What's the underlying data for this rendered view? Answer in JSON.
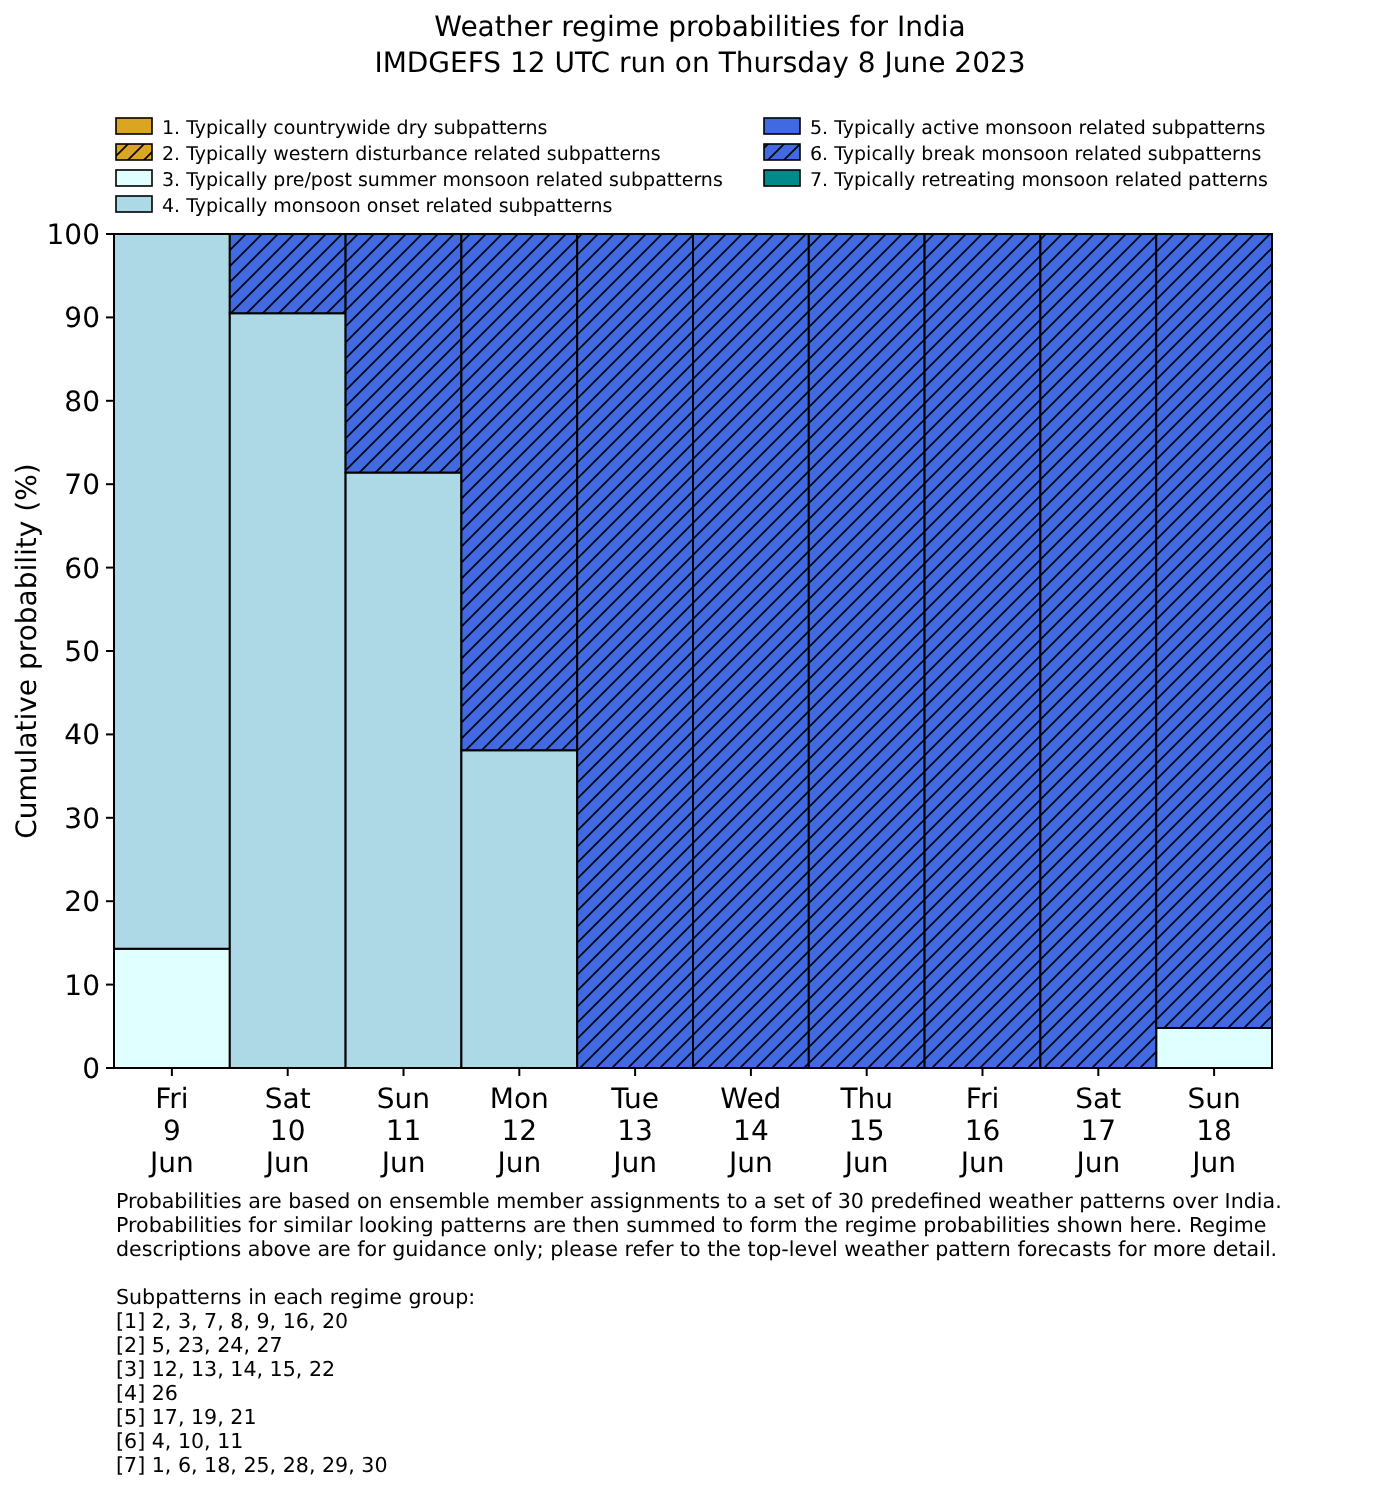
{
  "chart_data": {
    "type": "bar",
    "title": "Weather regime probabilities for India",
    "subtitle": "IMDGEFS 12 UTC run on Thursday 8 June 2023",
    "ylabel": "Cumulative probability (%)",
    "categories": [
      "Fri\n9\nJun",
      "Sat\n10\nJun",
      "Sun\n11\nJun",
      "Mon\n12\nJun",
      "Tue\n13\nJun",
      "Wed\n14\nJun",
      "Thu\n15\nJun",
      "Fri\n16\nJun",
      "Sat\n17\nJun",
      "Sun\n18\nJun"
    ],
    "stacked": true,
    "legend": "top",
    "ylim": [
      0,
      100
    ],
    "yticks": [
      0,
      10,
      20,
      30,
      40,
      50,
      60,
      70,
      80,
      90,
      100
    ],
    "series": [
      {
        "name": "1. Typically countrywide dry subpatterns",
        "color": "#daa520",
        "values": [
          0,
          0,
          0,
          0,
          0,
          0,
          0,
          0,
          0,
          0
        ]
      },
      {
        "name": "2. Typically western disturbance related subpatterns",
        "color": "#daa520",
        "values": [
          0,
          0,
          0,
          0,
          0,
          0,
          0,
          0,
          0,
          0
        ]
      },
      {
        "name": "3. Typically pre/post summer monsoon related subpatterns",
        "color": "#e0ffff",
        "values": [
          14.3,
          0,
          0,
          0,
          0,
          0,
          0,
          0,
          0,
          4.8
        ]
      },
      {
        "name": "4. Typically monsoon onset related subpatterns",
        "color": "#add8e6",
        "values": [
          85.7,
          90.5,
          71.4,
          38.1,
          0,
          0,
          0,
          0,
          0,
          0
        ]
      },
      {
        "name": "5. Typically active monsoon related subpatterns",
        "color": "#4169e1",
        "values": [
          0,
          0,
          0,
          0,
          0,
          0,
          0,
          0,
          0,
          0
        ]
      },
      {
        "name": "6. Typically break monsoon related subpatterns",
        "color": "#4169e1",
        "values": [
          0,
          9.5,
          28.6,
          61.9,
          100,
          100,
          100,
          100,
          100,
          95.2
        ]
      },
      {
        "name": "7. Typically retreating monsoon related patterns",
        "color": "#008b8b",
        "values": [
          0,
          0,
          0,
          0,
          0,
          0,
          0,
          0,
          0,
          0
        ]
      }
    ],
    "annotations": [
      "Probabilities are based on ensemble member assignments to a set of 30 predefined weather patterns over India.\nProbabilities for similar looking patterns are then summed to form the regime probabilities shown here. Regime\ndescriptions above are for guidance only; please refer to the top-level weather pattern forecasts for more detail.",
      "Subpatterns in each regime group:\n[1] 2, 3, 7, 8, 9, 16, 20\n[2] 5, 23, 24, 27\n[3] 12, 13, 14, 15, 22\n[4] 26\n[5] 17, 19, 21\n[6] 4, 10, 11\n[7] 1, 6, 18, 25, 28, 29, 30"
    ]
  }
}
